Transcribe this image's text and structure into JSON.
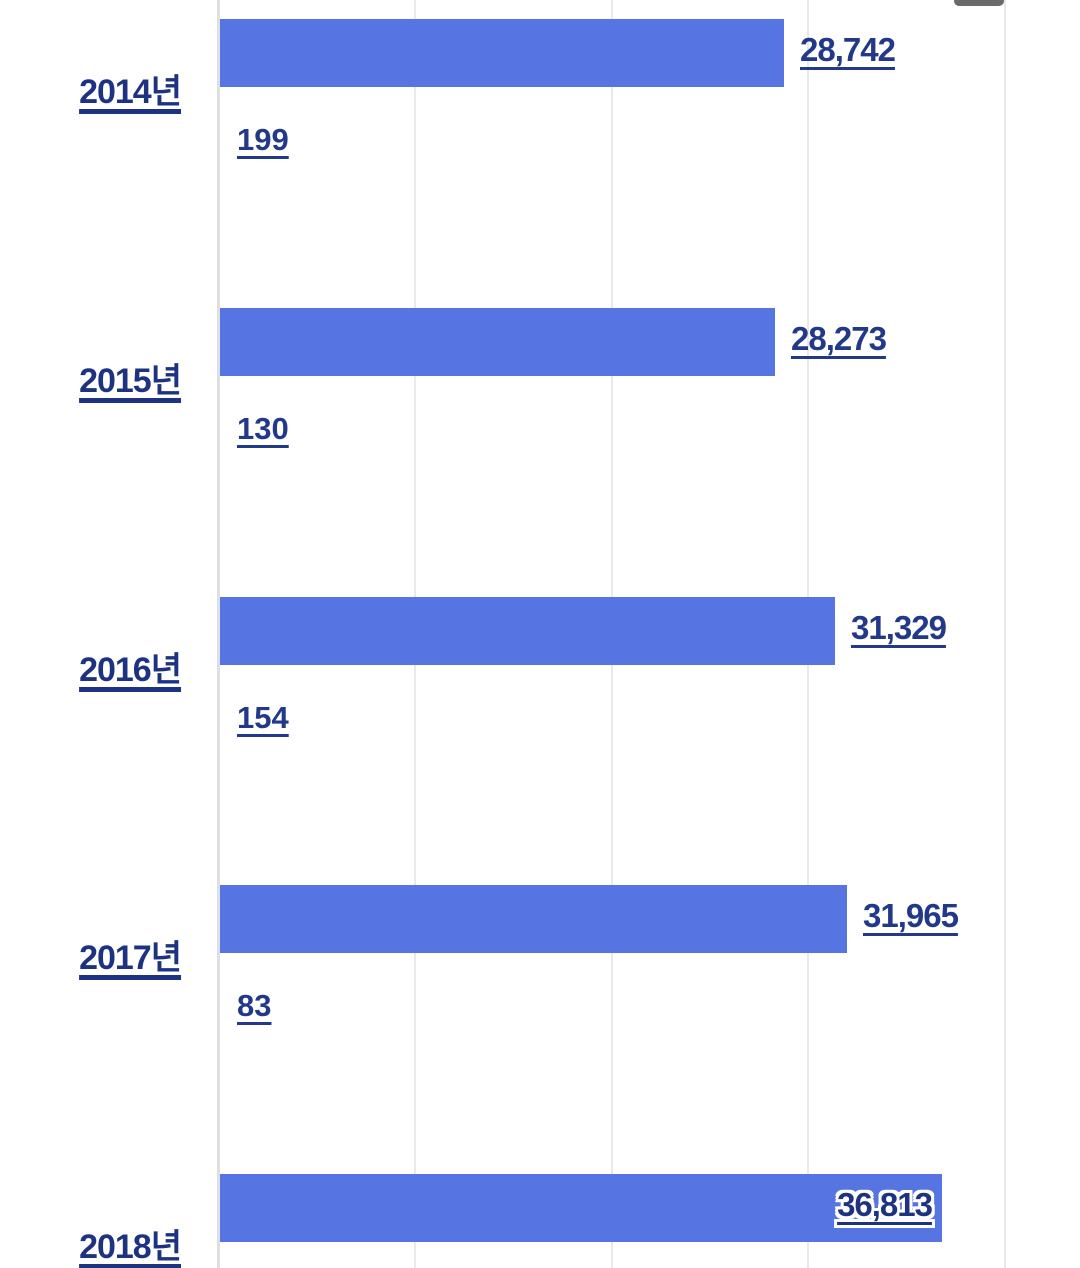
{
  "colors": {
    "bar": "#5674e2",
    "label_text": "#1d3382",
    "value_text": "#22398a",
    "gridline": "#e9e9e9",
    "axis_line": "#dcdfe3",
    "top_handle": "#6a6a6a",
    "background": "#ffffff"
  },
  "chart_data": {
    "type": "bar",
    "orientation": "horizontal",
    "title": "",
    "xlabel": "",
    "ylabel": "",
    "grid": true,
    "legend_position": "none",
    "xlim": [
      0,
      40000
    ],
    "xticks": [
      0,
      10000,
      20000,
      30000,
      40000
    ],
    "categories": [
      "2014년",
      "2015년",
      "2016년",
      "2017년",
      "2018년"
    ],
    "series": [
      {
        "name": "main",
        "values": [
          28742,
          28273,
          31329,
          31965,
          36813
        ],
        "labels": [
          "28,742",
          "28,273",
          "31,329",
          "31,965",
          "36,813"
        ],
        "label_inside": [
          false,
          false,
          false,
          false,
          true
        ]
      },
      {
        "name": "secondary",
        "values": [
          199,
          130,
          154,
          83,
          null
        ],
        "labels": [
          "199",
          "130",
          "154",
          "83",
          null
        ]
      }
    ]
  }
}
